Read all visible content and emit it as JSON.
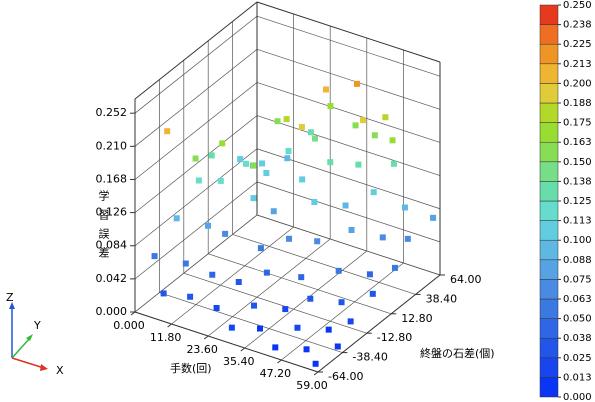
{
  "chart_data": {
    "type": "scatter3d",
    "x_label": "手数(回)",
    "y_label": "終盤の石差(個)",
    "z_label": "学習誤差",
    "gizmo": {
      "z": "Z",
      "y": "Y",
      "x": "X"
    },
    "grid": true,
    "xlim": [
      0,
      59
    ],
    "ylim": [
      -64,
      64
    ],
    "zlim": [
      0,
      0.27
    ],
    "xticks": [
      {
        "value": 0,
        "label": "0.000"
      },
      {
        "value": 11.8,
        "label": "11.80"
      },
      {
        "value": 23.6,
        "label": "23.60"
      },
      {
        "value": 35.4,
        "label": "35.40"
      },
      {
        "value": 47.2,
        "label": "47.20"
      },
      {
        "value": 59,
        "label": "59.00"
      }
    ],
    "yticks": [
      {
        "value": -64,
        "label": "-64.00"
      },
      {
        "value": -38.4,
        "label": "-38.40"
      },
      {
        "value": -12.8,
        "label": "-12.80"
      },
      {
        "value": 12.8,
        "label": "12.80"
      },
      {
        "value": 38.4,
        "label": "38.40"
      },
      {
        "value": 64,
        "label": "64.00"
      }
    ],
    "zticks": [
      {
        "value": 0,
        "label": "0.000"
      },
      {
        "value": 0.042,
        "label": "0.042"
      },
      {
        "value": 0.084,
        "label": "0.084"
      },
      {
        "value": 0.126,
        "label": "0.126"
      },
      {
        "value": 0.168,
        "label": "0.168"
      },
      {
        "value": 0.21,
        "label": "0.210"
      },
      {
        "value": 0.252,
        "label": "0.252"
      }
    ],
    "colorbar": {
      "ticks": [
        {
          "value": 0,
          "label": "0.000"
        },
        {
          "value": 0.0125,
          "label": "0.013"
        },
        {
          "value": 0.025,
          "label": "0.025"
        },
        {
          "value": 0.0375,
          "label": "0.038"
        },
        {
          "value": 0.05,
          "label": "0.050"
        },
        {
          "value": 0.0625,
          "label": "0.063"
        },
        {
          "value": 0.075,
          "label": "0.075"
        },
        {
          "value": 0.0875,
          "label": "0.088"
        },
        {
          "value": 0.1,
          "label": "0.100"
        },
        {
          "value": 0.1125,
          "label": "0.113"
        },
        {
          "value": 0.125,
          "label": "0.125"
        },
        {
          "value": 0.1375,
          "label": "0.138"
        },
        {
          "value": 0.15,
          "label": "0.150"
        },
        {
          "value": 0.1625,
          "label": "0.163"
        },
        {
          "value": 0.175,
          "label": "0.175"
        },
        {
          "value": 0.1875,
          "label": "0.188"
        },
        {
          "value": 0.2,
          "label": "0.200"
        },
        {
          "value": 0.2125,
          "label": "0.213"
        },
        {
          "value": 0.225,
          "label": "0.225"
        },
        {
          "value": 0.2375,
          "label": "0.238"
        },
        {
          "value": 0.25,
          "label": "0.250"
        }
      ],
      "colors": [
        "#0a35f5",
        "#1745ee",
        "#2255ea",
        "#2e66e6",
        "#3a78e2",
        "#4a8ae2",
        "#56a2e2",
        "#5fb8e2",
        "#62cce0",
        "#66dccc",
        "#66ddaa",
        "#77dd88",
        "#88dd55",
        "#99dd33",
        "#b4d82a",
        "#e0cc3a",
        "#eeb533",
        "#ee9526",
        "#ee6f22",
        "#e63a1e"
      ]
    },
    "x": [
      2,
      3,
      4,
      2,
      5,
      3,
      8,
      9,
      10,
      8,
      10,
      9,
      11,
      15,
      16,
      14,
      17,
      15,
      16,
      18,
      22,
      23,
      24,
      22,
      25,
      23,
      24,
      30,
      31,
      29,
      30,
      32,
      31,
      33,
      36,
      38,
      37,
      36,
      39,
      37,
      38,
      44,
      45,
      43,
      46,
      44,
      45,
      46,
      51,
      52,
      50,
      53,
      51,
      52,
      57,
      58,
      56,
      57,
      58,
      56,
      58,
      3,
      6,
      10,
      14,
      20,
      25,
      28,
      35,
      40,
      42,
      48,
      20
    ],
    "y": [
      -50,
      -30,
      -10,
      10,
      30,
      50,
      -60,
      -40,
      -20,
      0,
      20,
      40,
      60,
      -55,
      -35,
      -15,
      5,
      25,
      45,
      62,
      -50,
      -30,
      -10,
      10,
      30,
      50,
      63,
      -60,
      -40,
      -20,
      0,
      20,
      40,
      60,
      -50,
      -30,
      -10,
      10,
      30,
      50,
      64,
      -60,
      -40,
      -20,
      0,
      20,
      40,
      58,
      -50,
      -30,
      -10,
      10,
      30,
      50,
      -60,
      -40,
      -20,
      0,
      20,
      40,
      60,
      -40,
      -20,
      -5,
      40,
      30,
      55,
      20,
      55,
      45,
      62,
      50,
      -5
    ],
    "z": [
      0.06,
      0.09,
      0.12,
      0.13,
      0.11,
      0.08,
      0.03,
      0.05,
      0.08,
      0.115,
      0.12,
      0.1,
      0.09,
      0.03,
      0.04,
      0.07,
      0.1,
      0.11,
      0.12,
      0.13,
      0.02,
      0.035,
      0.06,
      0.085,
      0.11,
      0.14,
      0.17,
      0.015,
      0.025,
      0.045,
      0.07,
      0.1,
      0.13,
      0.16,
      0.012,
      0.02,
      0.04,
      0.065,
      0.095,
      0.125,
      0.15,
      0.008,
      0.015,
      0.03,
      0.05,
      0.08,
      0.11,
      0.13,
      0.005,
      0.012,
      0.025,
      0.045,
      0.07,
      0.09,
      0.004,
      0.008,
      0.018,
      0.035,
      0.05,
      0.065,
      0.075,
      0.21,
      0.16,
      0.17,
      0.16,
      0.18,
      0.2,
      0.19,
      0.22,
      0.19,
      0.18,
      0.17,
      0.155
    ]
  }
}
